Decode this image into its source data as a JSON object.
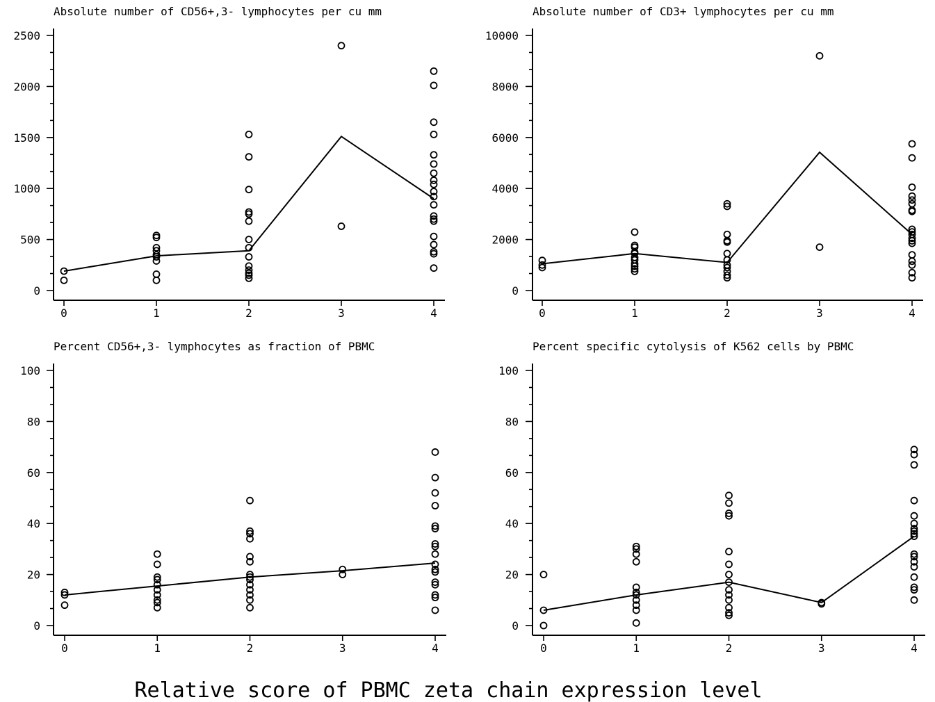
{
  "figure": {
    "xlabel": "Relative score of PBMC zeta chain expression level"
  },
  "chart_data": [
    {
      "type": "scatter",
      "title": "Absolute number of CD56+,3- lymphocytes per cu mm",
      "xlim": [
        0,
        4
      ],
      "ylim": [
        0,
        2500
      ],
      "yticks": [
        0,
        500,
        1000,
        1500,
        2000,
        2500
      ],
      "xticks": [
        0,
        1,
        2,
        3,
        4
      ],
      "points": {
        "0": [
          190,
          100
        ],
        "1": [
          540,
          520,
          420,
          390,
          350,
          330,
          290,
          160,
          100
        ],
        "2": [
          1530,
          1310,
          990,
          770,
          750,
          680,
          500,
          420,
          330,
          240,
          200,
          170,
          150,
          120
        ],
        "3": [
          2400,
          630
        ],
        "4": [
          2150,
          2010,
          1650,
          1530,
          1330,
          1240,
          1150,
          1080,
          1040,
          970,
          920,
          840,
          730,
          700,
          680,
          530,
          450,
          380,
          360,
          220
        ]
      },
      "mean_line": {
        "x": [
          0,
          1,
          2,
          3,
          4
        ],
        "y": [
          190,
          340,
          390,
          1510,
          900
        ]
      }
    },
    {
      "type": "scatter",
      "title": "Absolute number of CD3+ lymphocytes per cu mm",
      "xlim": [
        0,
        4
      ],
      "ylim": [
        0,
        10000
      ],
      "yticks": [
        0,
        2000,
        4000,
        6000,
        8000,
        10000
      ],
      "xticks": [
        0,
        1,
        2,
        3,
        4
      ],
      "points": {
        "0": [
          1180,
          1000,
          900
        ],
        "1": [
          2290,
          1770,
          1700,
          1500,
          1450,
          1300,
          1200,
          1050,
          950,
          850,
          750
        ],
        "2": [
          3400,
          3300,
          2200,
          1950,
          1900,
          1450,
          1200,
          1000,
          900,
          750,
          600,
          500
        ],
        "3": [
          9200,
          1700
        ],
        "4": [
          5750,
          5200,
          4050,
          3700,
          3550,
          3400,
          3150,
          3100,
          2400,
          2300,
          2200,
          2050,
          1950,
          1850,
          1400,
          1150,
          1000,
          700,
          500
        ]
      },
      "mean_line": {
        "x": [
          0,
          1,
          2,
          3,
          4
        ],
        "y": [
          1050,
          1450,
          1100,
          5420,
          2200
        ]
      }
    },
    {
      "type": "scatter",
      "title": "Percent CD56+,3- lymphocytes as fraction of PBMC",
      "xlim": [
        0,
        4
      ],
      "ylim": [
        0,
        100
      ],
      "yticks": [
        0,
        20,
        40,
        60,
        80,
        100
      ],
      "xticks": [
        0,
        1,
        2,
        3,
        4
      ],
      "points": {
        "0": [
          13,
          12,
          8
        ],
        "1": [
          28,
          24,
          19,
          18,
          16,
          14,
          12,
          10,
          9,
          7
        ],
        "2": [
          49,
          37,
          36,
          34,
          27,
          25,
          20,
          19,
          18,
          16,
          14,
          12,
          10,
          7
        ],
        "3": [
          22,
          20
        ],
        "4": [
          68,
          58,
          52,
          47,
          39,
          38,
          32,
          31,
          28,
          24,
          22,
          21,
          17,
          16,
          12,
          11,
          6
        ]
      },
      "mean_line": {
        "x": [
          0,
          1,
          2,
          3,
          4
        ],
        "y": [
          12,
          15.5,
          19,
          21.5,
          24.5
        ]
      }
    },
    {
      "type": "scatter",
      "title": "Percent specific cytolysis of K562 cells by PBMC",
      "xlim": [
        0,
        4
      ],
      "ylim": [
        0,
        100
      ],
      "yticks": [
        0,
        20,
        40,
        60,
        80,
        100
      ],
      "xticks": [
        0,
        1,
        2,
        3,
        4
      ],
      "points": {
        "0": [
          20,
          6,
          0
        ],
        "1": [
          31,
          30,
          28,
          25,
          15,
          13,
          12,
          10,
          8,
          6,
          1
        ],
        "2": [
          51,
          48,
          44,
          43,
          29,
          24,
          20,
          17,
          14,
          12,
          10,
          7,
          5,
          4
        ],
        "3": [
          9,
          8.5
        ],
        "4": [
          69,
          67,
          63,
          49,
          43,
          40,
          38,
          37,
          36,
          35,
          28,
          27,
          25,
          23,
          19,
          15,
          14,
          10
        ]
      },
      "mean_line": {
        "x": [
          0,
          1,
          2,
          3,
          4
        ],
        "y": [
          6,
          12,
          17,
          9,
          35
        ]
      }
    }
  ]
}
